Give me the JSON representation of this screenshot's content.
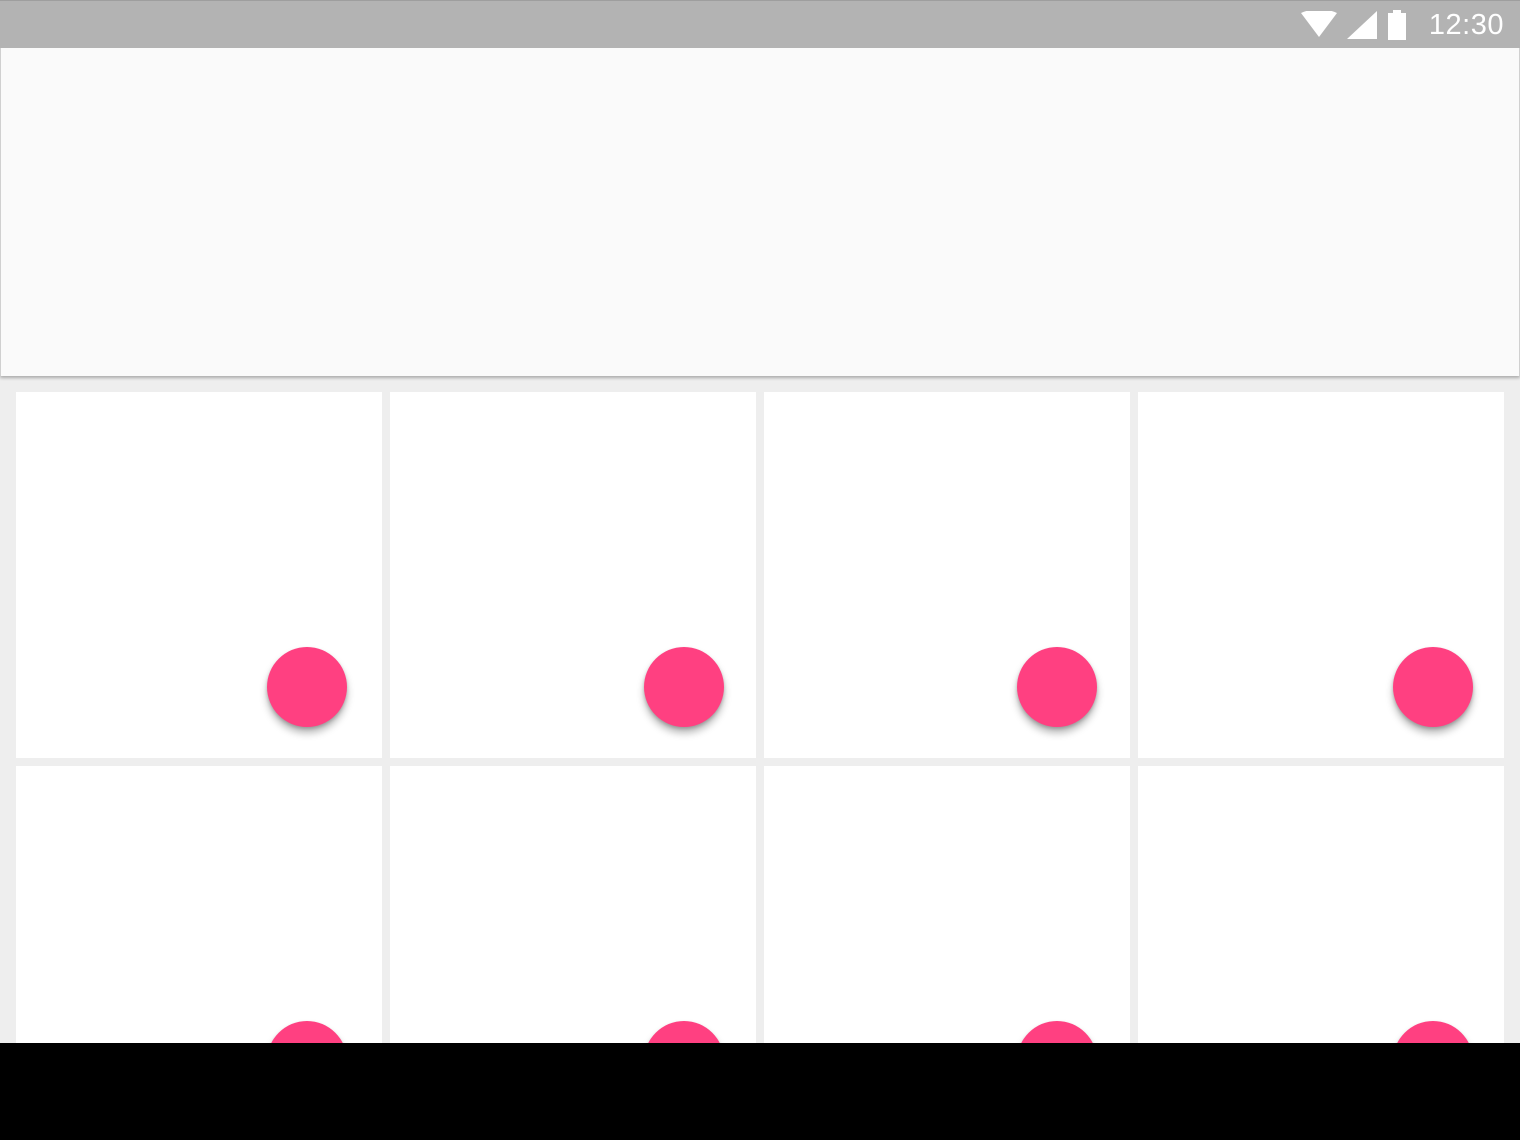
{
  "status_bar": {
    "time": "12:30",
    "icons": [
      "wifi-icon",
      "cell-signal-icon",
      "battery-icon"
    ]
  },
  "colors": {
    "status_bar": "#b3b3b3",
    "app_bar": "#fafafa",
    "background": "#eeeeee",
    "card": "#ffffff",
    "accent": "#ff4081"
  },
  "cards": [
    {
      "id": "1",
      "action_icon": "fab-icon"
    },
    {
      "id": "2",
      "action_icon": "fab-icon"
    },
    {
      "id": "3",
      "action_icon": "fab-icon"
    },
    {
      "id": "4",
      "action_icon": "fab-icon"
    },
    {
      "id": "5",
      "action_icon": "fab-icon"
    },
    {
      "id": "6",
      "action_icon": "fab-icon"
    },
    {
      "id": "7",
      "action_icon": "fab-icon"
    },
    {
      "id": "8",
      "action_icon": "fab-icon"
    }
  ]
}
